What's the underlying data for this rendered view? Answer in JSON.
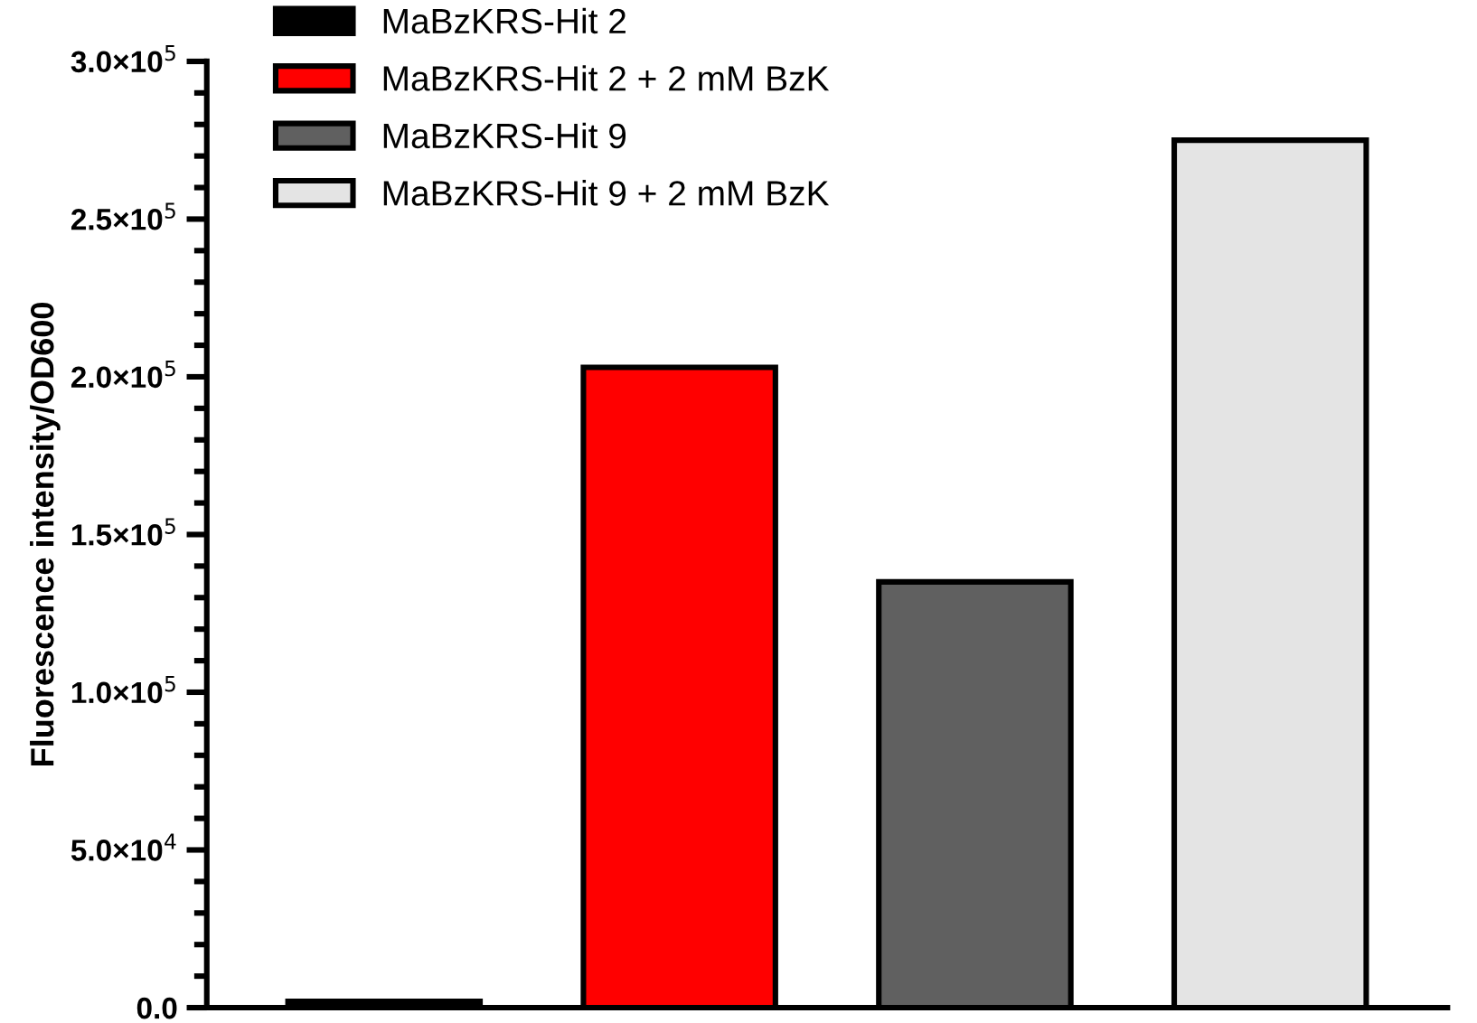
{
  "chart_data": {
    "type": "bar",
    "ylabel": "Fluorescence intensity/OD600",
    "categories": [
      null,
      null,
      null,
      null
    ],
    "series": [
      {
        "name": "MaBzKRS-Hit 2",
        "color": "#000000",
        "values": [
          2000,
          null,
          null,
          null
        ]
      },
      {
        "name": "MaBzKRS-Hit 2 + 2 mM BzK",
        "color": "#ff0000",
        "values": [
          null,
          203000,
          null,
          null
        ]
      },
      {
        "name": "MaBzKRS-Hit 9",
        "color": "#606060",
        "values": [
          null,
          null,
          135000,
          null
        ]
      },
      {
        "name": "MaBzKRS-Hit 9 + 2 mM BzK",
        "color": "#e4e4e4",
        "values": [
          null,
          null,
          null,
          275000
        ]
      }
    ],
    "ylim": [
      0,
      300000
    ],
    "yticks": [
      {
        "value": 0,
        "label": "0.0"
      },
      {
        "value": 50000,
        "label": "5.0×10$^{4}$"
      },
      {
        "value": 100000,
        "label": "1.0×10$^{5}$"
      },
      {
        "value": 150000,
        "label": "1.5×10$^{5}$"
      },
      {
        "value": 200000,
        "label": "2.0×10$^{5}$"
      },
      {
        "value": 250000,
        "label": "2.5×10$^{5}$"
      },
      {
        "value": 300000,
        "label": "3.0×10$^{5}$"
      }
    ],
    "legend": "top left",
    "grid": false
  }
}
